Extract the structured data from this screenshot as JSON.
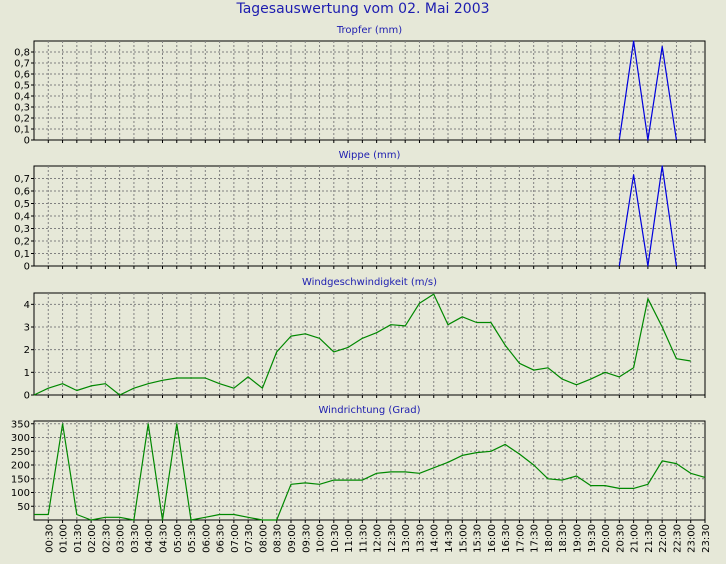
{
  "title": "Tagesauswertung vom 02. Mai 2003",
  "colors": {
    "background": "#e6e8d8",
    "title": "#1d1db0",
    "blue_series": "#0000dd",
    "green_series": "#008800",
    "grid": "#808080"
  },
  "x_labels": [
    "00:30",
    "01:00",
    "01:30",
    "02:00",
    "02:30",
    "03:00",
    "03:30",
    "04:00",
    "04:30",
    "05:00",
    "05:30",
    "06:00",
    "06:30",
    "07:00",
    "07:30",
    "08:00",
    "08:30",
    "09:00",
    "09:30",
    "10:00",
    "10:30",
    "11:00",
    "11:30",
    "12:00",
    "12:30",
    "13:00",
    "13:30",
    "14:00",
    "14:30",
    "15:00",
    "15:30",
    "16:00",
    "16:30",
    "17:00",
    "17:30",
    "18:00",
    "18:30",
    "19:00",
    "19:30",
    "20:00",
    "20:30",
    "21:00",
    "21:30",
    "22:00",
    "22:30",
    "23:00",
    "23:30"
  ],
  "chart_data": [
    {
      "type": "line",
      "title": "Tropfer (mm)",
      "ylim": [
        0,
        0.9
      ],
      "yticks": [
        0,
        0.1,
        0.2,
        0.3,
        0.4,
        0.5,
        0.6,
        0.7,
        0.8
      ],
      "ytick_labels": [
        "0",
        "0,1",
        "0,2",
        "0,3",
        "0,4",
        "0,5",
        "0,6",
        "0,7",
        "0,8"
      ],
      "color": "#0000dd",
      "points": [
        [
          20.5,
          0
        ],
        [
          21.0,
          0.9
        ],
        [
          21.5,
          0
        ],
        [
          22.0,
          0.85
        ],
        [
          22.5,
          0
        ]
      ]
    },
    {
      "type": "line",
      "title": "Wippe (mm)",
      "ylim": [
        0,
        0.8
      ],
      "yticks": [
        0,
        0.1,
        0.2,
        0.3,
        0.4,
        0.5,
        0.6,
        0.7
      ],
      "ytick_labels": [
        "0",
        "0,1",
        "0,2",
        "0,3",
        "0,4",
        "0,5",
        "0,6",
        "0,7"
      ],
      "color": "#0000dd",
      "points": [
        [
          20.5,
          0
        ],
        [
          21.0,
          0.73
        ],
        [
          21.5,
          0
        ],
        [
          22.0,
          0.8
        ],
        [
          22.5,
          0
        ]
      ]
    },
    {
      "type": "line",
      "title": "Windgeschwindigkeit (m/s)",
      "ylim": [
        0,
        4.5
      ],
      "yticks": [
        0,
        1,
        2,
        3,
        4
      ],
      "ytick_labels": [
        "0",
        "1",
        "2",
        "3",
        "4"
      ],
      "color": "#008800",
      "points": [
        [
          0.0,
          0
        ],
        [
          0.5,
          0.3
        ],
        [
          1.0,
          0.5
        ],
        [
          1.5,
          0.2
        ],
        [
          2.0,
          0.4
        ],
        [
          2.5,
          0.5
        ],
        [
          3.0,
          0
        ],
        [
          3.5,
          0.3
        ],
        [
          4.0,
          0.5
        ],
        [
          4.5,
          0.65
        ],
        [
          5.0,
          0.75
        ],
        [
          5.5,
          0.75
        ],
        [
          6.0,
          0.75
        ],
        [
          6.5,
          0.5
        ],
        [
          7.0,
          0.3
        ],
        [
          7.5,
          0.8
        ],
        [
          8.0,
          0.3
        ],
        [
          8.5,
          1.9
        ],
        [
          9.0,
          2.6
        ],
        [
          9.5,
          2.7
        ],
        [
          10.0,
          2.5
        ],
        [
          10.5,
          1.9
        ],
        [
          11.0,
          2.1
        ],
        [
          11.5,
          2.5
        ],
        [
          12.0,
          2.75
        ],
        [
          12.5,
          3.1
        ],
        [
          13.0,
          3.05
        ],
        [
          13.5,
          4.05
        ],
        [
          14.0,
          4.45
        ],
        [
          14.5,
          3.1
        ],
        [
          15.0,
          3.45
        ],
        [
          15.5,
          3.2
        ],
        [
          16.0,
          3.2
        ],
        [
          16.5,
          2.2
        ],
        [
          17.0,
          1.4
        ],
        [
          17.5,
          1.1
        ],
        [
          18.0,
          1.2
        ],
        [
          18.5,
          0.7
        ],
        [
          19.0,
          0.45
        ],
        [
          19.5,
          0.7
        ],
        [
          20.0,
          1.0
        ],
        [
          20.5,
          0.8
        ],
        [
          21.0,
          1.2
        ],
        [
          21.5,
          4.25
        ],
        [
          22.0,
          3.0
        ],
        [
          22.5,
          1.6
        ],
        [
          23.0,
          1.5
        ]
      ]
    },
    {
      "type": "line",
      "title": "Windrichtung (Grad)",
      "ylim": [
        0,
        360
      ],
      "yticks": [
        50,
        100,
        150,
        200,
        250,
        300,
        350
      ],
      "ytick_labels": [
        "50",
        "100",
        "150",
        "200",
        "250",
        "300",
        "350"
      ],
      "color": "#008800",
      "points": [
        [
          0.0,
          20
        ],
        [
          0.5,
          20
        ],
        [
          1.0,
          350
        ],
        [
          1.5,
          20
        ],
        [
          2.0,
          0
        ],
        [
          2.5,
          10
        ],
        [
          3.0,
          10
        ],
        [
          3.5,
          0
        ],
        [
          4.0,
          350
        ],
        [
          4.5,
          0
        ],
        [
          5.0,
          350
        ],
        [
          5.5,
          0
        ],
        [
          6.0,
          10
        ],
        [
          6.5,
          20
        ],
        [
          7.0,
          20
        ],
        [
          7.5,
          10
        ],
        [
          8.0,
          0
        ],
        [
          8.5,
          0
        ],
        [
          9.0,
          130
        ],
        [
          9.5,
          135
        ],
        [
          10.0,
          130
        ],
        [
          10.5,
          145
        ],
        [
          11.0,
          145
        ],
        [
          11.5,
          145
        ],
        [
          12.0,
          170
        ],
        [
          12.5,
          175
        ],
        [
          13.0,
          175
        ],
        [
          13.5,
          170
        ],
        [
          14.0,
          190
        ],
        [
          14.5,
          210
        ],
        [
          15.0,
          235
        ],
        [
          15.5,
          245
        ],
        [
          16.0,
          250
        ],
        [
          16.5,
          275
        ],
        [
          17.0,
          240
        ],
        [
          17.5,
          200
        ],
        [
          18.0,
          150
        ],
        [
          18.5,
          145
        ],
        [
          19.0,
          160
        ],
        [
          19.5,
          125
        ],
        [
          20.0,
          125
        ],
        [
          20.5,
          115
        ],
        [
          21.0,
          115
        ],
        [
          21.5,
          130
        ],
        [
          22.0,
          215
        ],
        [
          22.5,
          205
        ],
        [
          23.0,
          170
        ],
        [
          23.5,
          155
        ]
      ]
    }
  ]
}
